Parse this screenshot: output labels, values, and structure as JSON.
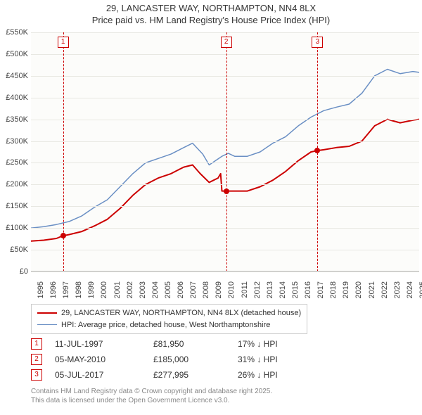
{
  "title": {
    "line1": "29, LANCASTER WAY, NORTHAMPTON, NN4 8LX",
    "line2": "Price paid vs. HM Land Registry's House Price Index (HPI)",
    "fontsize": 13
  },
  "chart": {
    "type": "line",
    "background_color": "#fcfcfa",
    "grid_color": "#e8e8e2",
    "axis_color": "#bbbbbb",
    "label_fontsize": 11,
    "x": {
      "min": 1995.0,
      "max": 2025.5,
      "ticks": [
        1995,
        1996,
        1997,
        1998,
        1999,
        2000,
        2001,
        2002,
        2003,
        2004,
        2005,
        2006,
        2007,
        2008,
        2009,
        2010,
        2011,
        2012,
        2013,
        2014,
        2015,
        2016,
        2017,
        2018,
        2019,
        2020,
        2021,
        2022,
        2023,
        2024,
        2025
      ]
    },
    "y": {
      "min": 0,
      "max": 550,
      "ticks": [
        0,
        50,
        100,
        150,
        200,
        250,
        300,
        350,
        400,
        450,
        500,
        550
      ],
      "tick_labels": [
        "£0",
        "£50K",
        "£100K",
        "£150K",
        "£200K",
        "£250K",
        "£300K",
        "£350K",
        "£400K",
        "£450K",
        "£500K",
        "£550K"
      ]
    },
    "series": [
      {
        "id": "property",
        "label": "29, LANCASTER WAY, NORTHAMPTON, NN4 8LX (detached house)",
        "color": "#cc0000",
        "line_width": 2,
        "data": [
          [
            1995.0,
            70
          ],
          [
            1996.0,
            72
          ],
          [
            1997.0,
            76
          ],
          [
            1997.5,
            82
          ],
          [
            1998.0,
            85
          ],
          [
            1999.0,
            92
          ],
          [
            2000.0,
            105
          ],
          [
            2001.0,
            120
          ],
          [
            2002.0,
            145
          ],
          [
            2003.0,
            175
          ],
          [
            2004.0,
            200
          ],
          [
            2005.0,
            215
          ],
          [
            2006.0,
            225
          ],
          [
            2007.0,
            240
          ],
          [
            2007.7,
            245
          ],
          [
            2008.3,
            225
          ],
          [
            2009.0,
            205
          ],
          [
            2009.7,
            215
          ],
          [
            2009.9,
            225
          ],
          [
            2010.0,
            185
          ],
          [
            2010.35,
            185
          ],
          [
            2011.0,
            185
          ],
          [
            2012.0,
            185
          ],
          [
            2013.0,
            195
          ],
          [
            2014.0,
            210
          ],
          [
            2015.0,
            230
          ],
          [
            2016.0,
            255
          ],
          [
            2017.0,
            275
          ],
          [
            2017.5,
            278
          ],
          [
            2018.0,
            280
          ],
          [
            2019.0,
            285
          ],
          [
            2020.0,
            288
          ],
          [
            2021.0,
            300
          ],
          [
            2022.0,
            335
          ],
          [
            2023.0,
            350
          ],
          [
            2024.0,
            342
          ],
          [
            2025.0,
            348
          ],
          [
            2025.5,
            350
          ]
        ]
      },
      {
        "id": "hpi",
        "label": "HPI: Average price, detached house, West Northamptonshire",
        "color": "#6a8fc4",
        "line_width": 1.5,
        "data": [
          [
            1995.0,
            100
          ],
          [
            1996.0,
            103
          ],
          [
            1997.0,
            108
          ],
          [
            1998.0,
            115
          ],
          [
            1999.0,
            128
          ],
          [
            2000.0,
            148
          ],
          [
            2001.0,
            165
          ],
          [
            2002.0,
            195
          ],
          [
            2003.0,
            225
          ],
          [
            2004.0,
            250
          ],
          [
            2005.0,
            260
          ],
          [
            2006.0,
            270
          ],
          [
            2007.0,
            285
          ],
          [
            2007.7,
            295
          ],
          [
            2008.5,
            270
          ],
          [
            2009.0,
            245
          ],
          [
            2009.5,
            255
          ],
          [
            2010.0,
            265
          ],
          [
            2010.5,
            272
          ],
          [
            2011.0,
            265
          ],
          [
            2012.0,
            265
          ],
          [
            2013.0,
            275
          ],
          [
            2014.0,
            295
          ],
          [
            2015.0,
            310
          ],
          [
            2016.0,
            335
          ],
          [
            2017.0,
            355
          ],
          [
            2018.0,
            370
          ],
          [
            2019.0,
            378
          ],
          [
            2020.0,
            385
          ],
          [
            2021.0,
            410
          ],
          [
            2022.0,
            450
          ],
          [
            2023.0,
            465
          ],
          [
            2024.0,
            455
          ],
          [
            2025.0,
            460
          ],
          [
            2025.5,
            458
          ]
        ]
      }
    ],
    "sale_markers": [
      {
        "n": "1",
        "color": "#cc0000",
        "x": 1997.52,
        "y": 82
      },
      {
        "n": "2",
        "color": "#cc0000",
        "x": 2010.34,
        "y": 185
      },
      {
        "n": "3",
        "color": "#cc0000",
        "x": 2017.51,
        "y": 278
      }
    ]
  },
  "legend": {
    "items": [
      {
        "color": "#cc0000",
        "width": 2,
        "label": "29, LANCASTER WAY, NORTHAMPTON, NN4 8LX (detached house)"
      },
      {
        "color": "#6a8fc4",
        "width": 1.5,
        "label": "HPI: Average price, detached house, West Northamptonshire"
      }
    ]
  },
  "events": [
    {
      "n": "1",
      "color": "#cc0000",
      "date": "11-JUL-1997",
      "price": "£81,950",
      "hpi": "17% ↓ HPI"
    },
    {
      "n": "2",
      "color": "#cc0000",
      "date": "05-MAY-2010",
      "price": "£185,000",
      "hpi": "31% ↓ HPI"
    },
    {
      "n": "3",
      "color": "#cc0000",
      "date": "05-JUL-2017",
      "price": "£277,995",
      "hpi": "26% ↓ HPI"
    }
  ],
  "footer": {
    "line1": "Contains HM Land Registry data © Crown copyright and database right 2025.",
    "line2": "This data is licensed under the Open Government Licence v3.0."
  }
}
